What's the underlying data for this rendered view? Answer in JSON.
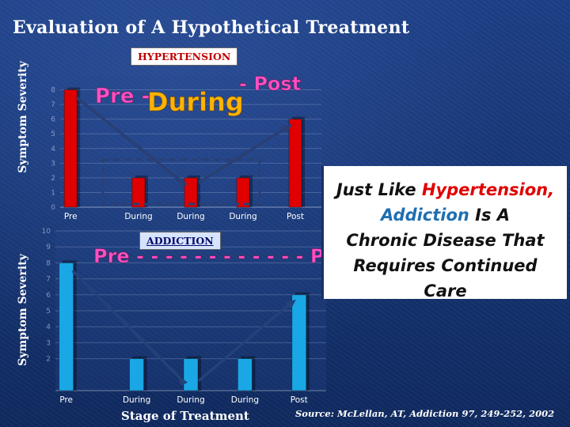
{
  "title": "Evaluation of A Hypothetical Treatment",
  "ylabel": "Symptom Severity",
  "xlabel": "Stage of Treatment",
  "source": "Source: McLellan, AT, Addiction 97, 249-252, 2002",
  "callout": {
    "line1_a": "Just Like ",
    "line1_b": "Hypertension,",
    "line2_a": "Addiction",
    "line2_b": " Is A",
    "line3": "Chronic Disease That",
    "line4": "Requires Continued",
    "line5": "Care"
  },
  "colors": {
    "hypertension_bar": "#e00000",
    "addiction_bar": "#1aa7e6",
    "text": "#ffffff"
  },
  "chart_data": [
    {
      "type": "bar",
      "badge": "HYPERTENSION",
      "annotation": {
        "pre": "Pre -",
        "mid": "During",
        "post": "- Post"
      },
      "categories": [
        "Pre",
        "During",
        "During",
        "During",
        "Post"
      ],
      "values": [
        8,
        2,
        2,
        2,
        6
      ],
      "ylim": [
        0,
        9
      ],
      "yticks": [
        0,
        1,
        2,
        3,
        4,
        5,
        6,
        7,
        8
      ],
      "ylabel": "Symptom Severity",
      "grid": true
    },
    {
      "type": "bar",
      "badge": "ADDICTION",
      "annotation": {
        "text": "Pre - - - - - - - - - - - - Post"
      },
      "categories": [
        "Pre",
        "During",
        "During",
        "During",
        "Post"
      ],
      "values": [
        8,
        2,
        2,
        2,
        6
      ],
      "ylim": [
        0,
        10
      ],
      "yticks": [
        2,
        3,
        4,
        5,
        6,
        7,
        8,
        9,
        10
      ],
      "ylabel": "Symptom Severity",
      "xlabel": "Stage of Treatment",
      "grid": true
    }
  ]
}
